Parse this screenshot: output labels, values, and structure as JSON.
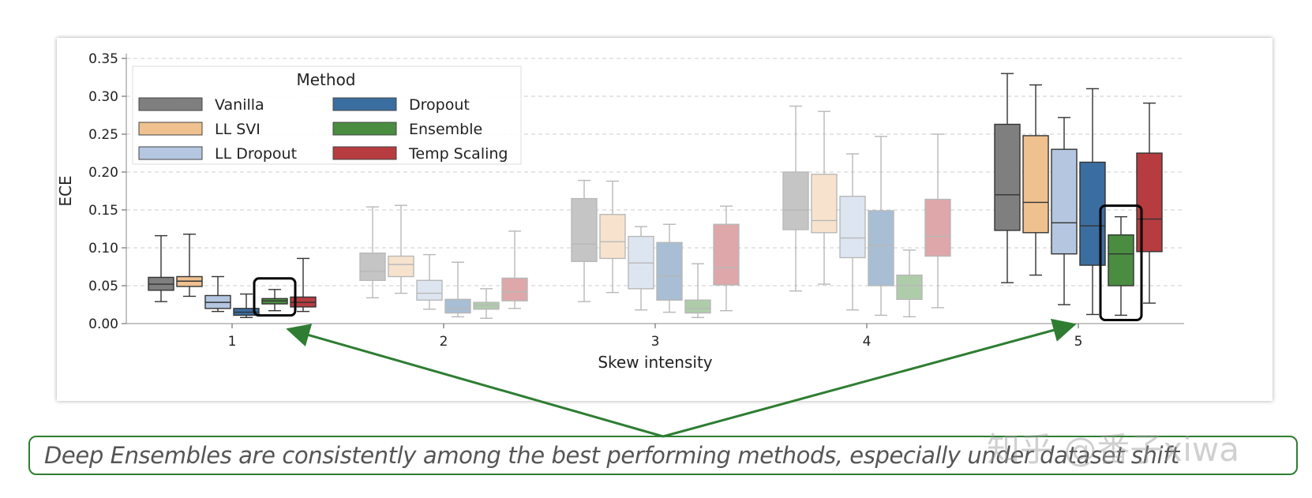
{
  "chart_data": {
    "type": "box",
    "xlabel": "Skew intensity",
    "ylabel": "ECE",
    "ylim": [
      0,
      0.35
    ],
    "yticks": [
      "0.00",
      "0.05",
      "0.10",
      "0.15",
      "0.20",
      "0.25",
      "0.30",
      "0.35"
    ],
    "categories": [
      "1",
      "2",
      "3",
      "4",
      "5"
    ],
    "grid": "horizontal-dashed",
    "legend": {
      "title": "Method",
      "placement": "top-left"
    },
    "series": [
      {
        "name": "Vanilla",
        "color": "#7f7f7f",
        "boxes": [
          {
            "whislo": 0.029,
            "q1": 0.044,
            "med": 0.052,
            "q3": 0.061,
            "whishi": 0.116
          },
          {
            "whislo": 0.034,
            "q1": 0.057,
            "med": 0.069,
            "q3": 0.093,
            "whishi": 0.154
          },
          {
            "whislo": 0.029,
            "q1": 0.082,
            "med": 0.105,
            "q3": 0.165,
            "whishi": 0.189
          },
          {
            "whislo": 0.043,
            "q1": 0.124,
            "med": 0.15,
            "q3": 0.2,
            "whishi": 0.287
          },
          {
            "whislo": 0.054,
            "q1": 0.123,
            "med": 0.17,
            "q3": 0.263,
            "whishi": 0.33
          }
        ]
      },
      {
        "name": "LL SVI",
        "color": "#eec18f",
        "boxes": [
          {
            "whislo": 0.036,
            "q1": 0.049,
            "med": 0.056,
            "q3": 0.062,
            "whishi": 0.118
          },
          {
            "whislo": 0.04,
            "q1": 0.062,
            "med": 0.078,
            "q3": 0.089,
            "whishi": 0.156
          },
          {
            "whislo": 0.041,
            "q1": 0.086,
            "med": 0.108,
            "q3": 0.144,
            "whishi": 0.188
          },
          {
            "whislo": 0.052,
            "q1": 0.12,
            "med": 0.136,
            "q3": 0.197,
            "whishi": 0.28
          },
          {
            "whislo": 0.064,
            "q1": 0.12,
            "med": 0.16,
            "q3": 0.248,
            "whishi": 0.315
          }
        ]
      },
      {
        "name": "LL Dropout",
        "color": "#b4c6e0",
        "boxes": [
          {
            "whislo": 0.016,
            "q1": 0.02,
            "med": 0.028,
            "q3": 0.037,
            "whishi": 0.062
          },
          {
            "whislo": 0.019,
            "q1": 0.031,
            "med": 0.04,
            "q3": 0.057,
            "whishi": 0.091
          },
          {
            "whislo": 0.018,
            "q1": 0.046,
            "med": 0.08,
            "q3": 0.115,
            "whishi": 0.128
          },
          {
            "whislo": 0.018,
            "q1": 0.087,
            "med": 0.113,
            "q3": 0.168,
            "whishi": 0.224
          },
          {
            "whislo": 0.025,
            "q1": 0.092,
            "med": 0.133,
            "q3": 0.23,
            "whishi": 0.272
          }
        ]
      },
      {
        "name": "Dropout",
        "color": "#3b6ea0",
        "boxes": [
          {
            "whislo": 0.008,
            "q1": 0.011,
            "med": 0.015,
            "q3": 0.02,
            "whishi": 0.039
          },
          {
            "whislo": 0.009,
            "q1": 0.014,
            "med": 0.02,
            "q3": 0.032,
            "whishi": 0.081
          },
          {
            "whislo": 0.015,
            "q1": 0.031,
            "med": 0.063,
            "q3": 0.107,
            "whishi": 0.131
          },
          {
            "whislo": 0.011,
            "q1": 0.05,
            "med": 0.103,
            "q3": 0.149,
            "whishi": 0.247
          },
          {
            "whislo": 0.012,
            "q1": 0.077,
            "med": 0.129,
            "q3": 0.213,
            "whishi": 0.31
          }
        ]
      },
      {
        "name": "Ensemble",
        "color": "#4a8d41",
        "boxes": [
          {
            "whislo": 0.017,
            "q1": 0.026,
            "med": 0.03,
            "q3": 0.033,
            "whishi": 0.045
          },
          {
            "whislo": 0.007,
            "q1": 0.019,
            "med": 0.024,
            "q3": 0.028,
            "whishi": 0.046
          },
          {
            "whislo": 0.008,
            "q1": 0.014,
            "med": 0.02,
            "q3": 0.031,
            "whishi": 0.079
          },
          {
            "whislo": 0.009,
            "q1": 0.032,
            "med": 0.05,
            "q3": 0.064,
            "whishi": 0.097
          },
          {
            "whislo": 0.011,
            "q1": 0.05,
            "med": 0.092,
            "q3": 0.117,
            "whishi": 0.141
          }
        ]
      },
      {
        "name": "Temp Scaling",
        "color": "#b63c40",
        "boxes": [
          {
            "whislo": 0.016,
            "q1": 0.022,
            "med": 0.028,
            "q3": 0.035,
            "whishi": 0.086
          },
          {
            "whislo": 0.02,
            "q1": 0.03,
            "med": 0.042,
            "q3": 0.06,
            "whishi": 0.122
          },
          {
            "whislo": 0.017,
            "q1": 0.051,
            "med": 0.074,
            "q3": 0.131,
            "whishi": 0.155
          },
          {
            "whislo": 0.021,
            "q1": 0.089,
            "med": 0.115,
            "q3": 0.164,
            "whishi": 0.25
          },
          {
            "whislo": 0.027,
            "q1": 0.095,
            "med": 0.138,
            "q3": 0.225,
            "whishi": 0.291
          }
        ]
      }
    ],
    "group_opacity": [
      1.0,
      0.55,
      0.55,
      0.55,
      1.0
    ],
    "highlights": [
      {
        "series": "Ensemble",
        "category": "1",
        "color": "#000000"
      },
      {
        "series": "Ensemble",
        "category": "5",
        "color": "#000000"
      }
    ]
  },
  "annotation": {
    "caption": "Deep Ensembles are consistently among the best performing methods, especially under dataset shift",
    "arrow_color": "#2e7d32"
  },
  "watermark": "知乎 @番子xiwa"
}
